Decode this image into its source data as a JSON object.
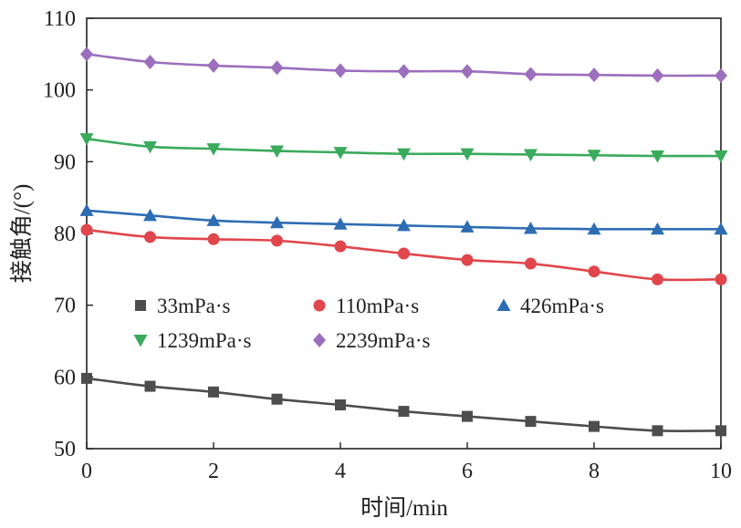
{
  "chart_data": {
    "type": "line",
    "xlabel": "时间/min",
    "ylabel": "接触角/(°)",
    "xlim": [
      0,
      10
    ],
    "ylim": [
      50,
      110
    ],
    "xticks": [
      "0",
      "2",
      "4",
      "6",
      "8",
      "10"
    ],
    "yticks": [
      "50",
      "60",
      "70",
      "80",
      "90",
      "100",
      "110"
    ],
    "grid": false,
    "legend_position": "center-left inside plot",
    "x": [
      0,
      1,
      2,
      3,
      4,
      5,
      6,
      7,
      8,
      9,
      10
    ],
    "series": [
      {
        "name": "33mPa·s",
        "marker": "square",
        "color": "#4d4d4d",
        "values": [
          59.8,
          58.7,
          57.9,
          56.9,
          56.1,
          55.2,
          54.5,
          53.8,
          53.1,
          52.5,
          52.5
        ]
      },
      {
        "name": "110mPa·s",
        "marker": "circle",
        "color": "#e0464b",
        "values": [
          80.5,
          79.5,
          79.2,
          79.0,
          78.2,
          77.2,
          76.3,
          75.8,
          74.7,
          73.6,
          73.6
        ]
      },
      {
        "name": "426mPa·s",
        "marker": "triangle-up",
        "color": "#2e6db4",
        "values": [
          83.2,
          82.5,
          81.8,
          81.5,
          81.3,
          81.1,
          80.9,
          80.7,
          80.6,
          80.6,
          80.6
        ]
      },
      {
        "name": "1239mPa·s",
        "marker": "triangle-down",
        "color": "#3aaa5c",
        "values": [
          93.2,
          92.1,
          91.8,
          91.5,
          91.3,
          91.1,
          91.1,
          91.0,
          90.9,
          90.8,
          90.8
        ]
      },
      {
        "name": "2239mPa·s",
        "marker": "diamond",
        "color": "#9b6fbd",
        "values": [
          105.0,
          103.9,
          103.4,
          103.1,
          102.7,
          102.6,
          102.6,
          102.2,
          102.1,
          102.0,
          102.0
        ]
      }
    ]
  }
}
